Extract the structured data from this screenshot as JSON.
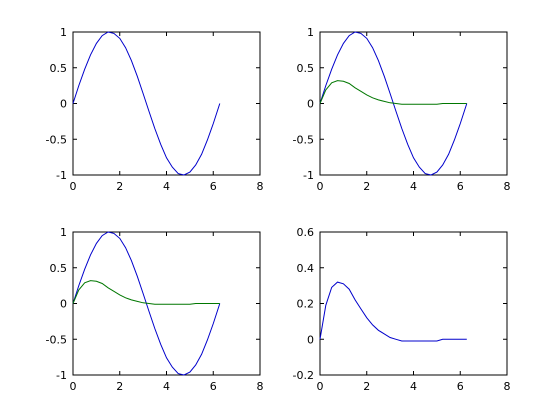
{
  "chart_data": [
    {
      "type": "line",
      "xlim": [
        0,
        8
      ],
      "ylim": [
        -1,
        1
      ],
      "x_ticks": [
        0,
        2,
        4,
        6,
        8
      ],
      "x_tick_labels": [
        "0",
        "2",
        "4",
        "6",
        "8"
      ],
      "y_ticks": [
        -1,
        -0.5,
        0,
        0.5,
        1
      ],
      "y_tick_labels": [
        "-1",
        "-0.5",
        "0",
        "0.5",
        "1"
      ],
      "grid": false,
      "series": [
        {
          "color": "#0000cc",
          "x": [
            0,
            0.25,
            0.5,
            0.75,
            1,
            1.25,
            1.5,
            1.75,
            2,
            2.25,
            2.5,
            2.75,
            3,
            3.25,
            3.5,
            3.75,
            4,
            4.25,
            4.5,
            4.75,
            5,
            5.25,
            5.5,
            5.75,
            6,
            6.28
          ],
          "y": [
            0,
            0.25,
            0.48,
            0.68,
            0.84,
            0.95,
            1.0,
            0.98,
            0.91,
            0.78,
            0.6,
            0.38,
            0.14,
            -0.11,
            -0.35,
            -0.57,
            -0.76,
            -0.89,
            -0.98,
            -1.0,
            -0.96,
            -0.86,
            -0.71,
            -0.51,
            -0.28,
            0
          ]
        }
      ]
    },
    {
      "type": "line",
      "xlim": [
        0,
        8
      ],
      "ylim": [
        -1,
        1
      ],
      "x_ticks": [
        0,
        2,
        4,
        6,
        8
      ],
      "x_tick_labels": [
        "0",
        "2",
        "4",
        "6",
        "8"
      ],
      "y_ticks": [
        -1,
        -0.5,
        0,
        0.5,
        1
      ],
      "y_tick_labels": [
        "-1",
        "-0.5",
        "0",
        "0.5",
        "1"
      ],
      "grid": false,
      "series": [
        {
          "color": "#0000cc",
          "x": [
            0,
            0.25,
            0.5,
            0.75,
            1,
            1.25,
            1.5,
            1.75,
            2,
            2.25,
            2.5,
            2.75,
            3,
            3.25,
            3.5,
            3.75,
            4,
            4.25,
            4.5,
            4.75,
            5,
            5.25,
            5.5,
            5.75,
            6,
            6.28
          ],
          "y": [
            0,
            0.25,
            0.48,
            0.68,
            0.84,
            0.95,
            1.0,
            0.98,
            0.91,
            0.78,
            0.6,
            0.38,
            0.14,
            -0.11,
            -0.35,
            -0.57,
            -0.76,
            -0.89,
            -0.98,
            -1.0,
            -0.96,
            -0.86,
            -0.71,
            -0.51,
            -0.28,
            0
          ]
        },
        {
          "color": "#007700",
          "x": [
            0,
            0.25,
            0.5,
            0.75,
            1,
            1.25,
            1.5,
            1.75,
            2,
            2.25,
            2.5,
            2.75,
            3,
            3.25,
            3.5,
            3.75,
            4,
            4.25,
            4.5,
            4.75,
            5,
            5.25,
            5.5,
            5.75,
            6,
            6.28
          ],
          "y": [
            0,
            0.19,
            0.29,
            0.32,
            0.31,
            0.28,
            0.22,
            0.17,
            0.12,
            0.08,
            0.05,
            0.03,
            0.01,
            0.0,
            -0.01,
            -0.01,
            -0.01,
            -0.01,
            -0.01,
            -0.01,
            -0.01,
            0.0,
            0.0,
            0.0,
            0.0,
            0.0
          ]
        }
      ]
    },
    {
      "type": "line",
      "xlim": [
        0,
        8
      ],
      "ylim": [
        -1,
        1
      ],
      "x_ticks": [
        0,
        2,
        4,
        6,
        8
      ],
      "x_tick_labels": [
        "0",
        "2",
        "4",
        "6",
        "8"
      ],
      "y_ticks": [
        -1,
        -0.5,
        0,
        0.5,
        1
      ],
      "y_tick_labels": [
        "-1",
        "-0.5",
        "0",
        "0.5",
        "1"
      ],
      "grid": false,
      "series": [
        {
          "color": "#0000cc",
          "x": [
            0,
            0.25,
            0.5,
            0.75,
            1,
            1.25,
            1.5,
            1.75,
            2,
            2.25,
            2.5,
            2.75,
            3,
            3.25,
            3.5,
            3.75,
            4,
            4.25,
            4.5,
            4.75,
            5,
            5.25,
            5.5,
            5.75,
            6,
            6.28
          ],
          "y": [
            0,
            0.25,
            0.48,
            0.68,
            0.84,
            0.95,
            1.0,
            0.98,
            0.91,
            0.78,
            0.6,
            0.38,
            0.14,
            -0.11,
            -0.35,
            -0.57,
            -0.76,
            -0.89,
            -0.98,
            -1.0,
            -0.96,
            -0.86,
            -0.71,
            -0.51,
            -0.28,
            0
          ]
        },
        {
          "color": "#007700",
          "x": [
            0,
            0.25,
            0.5,
            0.75,
            1,
            1.25,
            1.5,
            1.75,
            2,
            2.25,
            2.5,
            2.75,
            3,
            3.25,
            3.5,
            3.75,
            4,
            4.25,
            4.5,
            4.75,
            5,
            5.25,
            5.5,
            5.75,
            6,
            6.28
          ],
          "y": [
            0,
            0.19,
            0.29,
            0.32,
            0.31,
            0.28,
            0.22,
            0.17,
            0.12,
            0.08,
            0.05,
            0.03,
            0.01,
            0.0,
            -0.01,
            -0.01,
            -0.01,
            -0.01,
            -0.01,
            -0.01,
            -0.01,
            0.0,
            0.0,
            0.0,
            0.0,
            0.0
          ]
        }
      ]
    },
    {
      "type": "line",
      "xlim": [
        0,
        8
      ],
      "ylim": [
        -0.2,
        0.6
      ],
      "x_ticks": [
        0,
        2,
        4,
        6,
        8
      ],
      "x_tick_labels": [
        "0",
        "2",
        "4",
        "6",
        "8"
      ],
      "y_ticks": [
        -0.2,
        0,
        0.2,
        0.4,
        0.6
      ],
      "y_tick_labels": [
        "-0.2",
        "0",
        "0.2",
        "0.4",
        "0.6"
      ],
      "grid": false,
      "series": [
        {
          "color": "#0000cc",
          "x": [
            0,
            0.25,
            0.5,
            0.75,
            1,
            1.25,
            1.5,
            1.75,
            2,
            2.25,
            2.5,
            2.75,
            3,
            3.25,
            3.5,
            3.75,
            4,
            4.25,
            4.5,
            4.75,
            5,
            5.25,
            5.5,
            5.75,
            6,
            6.28
          ],
          "y": [
            0,
            0.19,
            0.29,
            0.32,
            0.31,
            0.28,
            0.22,
            0.17,
            0.12,
            0.08,
            0.05,
            0.03,
            0.01,
            0.0,
            -0.01,
            -0.01,
            -0.01,
            -0.01,
            -0.01,
            -0.01,
            -0.01,
            0.0,
            0.0,
            0.0,
            0.0,
            0.0
          ]
        }
      ]
    }
  ]
}
